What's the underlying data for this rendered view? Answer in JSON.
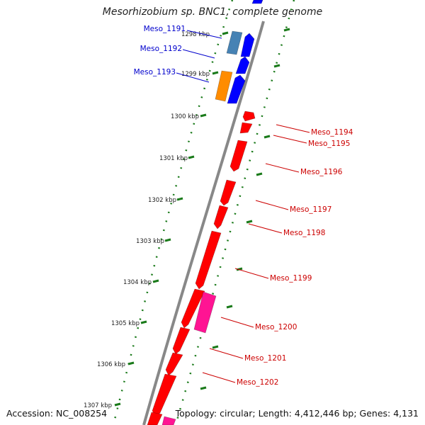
{
  "title": "Mesorhizobium sp. BNC1, complete genome",
  "footer": {
    "accession": "Accession: NC_008254",
    "summary": "Topology: circular; Length: 4,412,446 bp; Genes: 4,131"
  },
  "colors": {
    "forward_gene": "#0000ff",
    "reverse_gene": "#ff0000",
    "steelblue_gene": "#4682b4",
    "orange_gene": "#ff8c00",
    "magenta_gene": "#ff1493",
    "backbone": "#888888",
    "tick": "#1a7a1a",
    "forward_label": "#00008b",
    "reverse_label": "#cc0000"
  },
  "ticks": [
    {
      "kbp": 1298,
      "label": "1298 kbp"
    },
    {
      "kbp": 1299,
      "label": "1299 kbp"
    },
    {
      "kbp": 1300,
      "label": "1300 kbp"
    },
    {
      "kbp": 1301,
      "label": "1301 kbp"
    },
    {
      "kbp": 1302,
      "label": "1302 kbp"
    },
    {
      "kbp": 1303,
      "label": "1303 kbp"
    },
    {
      "kbp": 1304,
      "label": "1304 kbp"
    },
    {
      "kbp": 1305,
      "label": "1305 kbp"
    },
    {
      "kbp": 1306,
      "label": "1306 kbp"
    },
    {
      "kbp": 1307,
      "label": "1307 kbp"
    }
  ],
  "gene_labels": [
    {
      "name": "Meso_1191",
      "strand": "forward"
    },
    {
      "name": "Meso_1192",
      "strand": "forward"
    },
    {
      "name": "Meso_1193",
      "strand": "forward"
    },
    {
      "name": "Meso_1194",
      "strand": "reverse"
    },
    {
      "name": "Meso_1195",
      "strand": "reverse"
    },
    {
      "name": "Meso_1196",
      "strand": "reverse"
    },
    {
      "name": "Meso_1197",
      "strand": "reverse"
    },
    {
      "name": "Meso_1198",
      "strand": "reverse"
    },
    {
      "name": "Meso_1199",
      "strand": "reverse"
    },
    {
      "name": "Meso_1200",
      "strand": "reverse"
    },
    {
      "name": "Meso_1201",
      "strand": "reverse"
    },
    {
      "name": "Meso_1202",
      "strand": "reverse"
    }
  ]
}
